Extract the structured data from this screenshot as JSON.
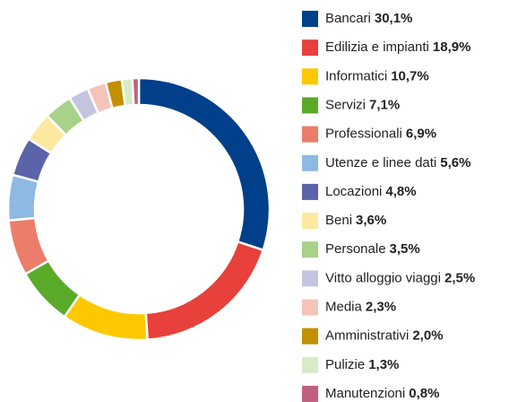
{
  "chart_data": {
    "type": "pie",
    "categories": [
      "Bancari",
      "Edilizia e impianti",
      "Informatici",
      "Servizi",
      "Professionali",
      "Utenze e linee dati",
      "Locazioni",
      "Beni",
      "Personale",
      "Vitto alloggio viaggi",
      "Media",
      "Amministrativi",
      "Pulizie",
      "Manutenzioni"
    ],
    "values": [
      30.1,
      18.9,
      10.7,
      7.1,
      6.9,
      5.6,
      4.8,
      3.6,
      3.5,
      2.5,
      2.3,
      2.0,
      1.3,
      0.8
    ],
    "value_labels": [
      "30,1%",
      "18,9%",
      "10,7%",
      "7,1%",
      "6,9%",
      "5,6%",
      "4,8%",
      "3,6%",
      "3,5%",
      "2,5%",
      "2,3%",
      "2,0%",
      "1,3%",
      "0,8%"
    ],
    "colors": [
      "#003f8a",
      "#e8403a",
      "#fcc900",
      "#5aaa2a",
      "#ec7d6a",
      "#8db9e3",
      "#5b64a8",
      "#fde8a0",
      "#a8d18a",
      "#c5c5e2",
      "#f5c4b8",
      "#c48f00",
      "#d8ebc8",
      "#c06080"
    ],
    "donut": true
  }
}
